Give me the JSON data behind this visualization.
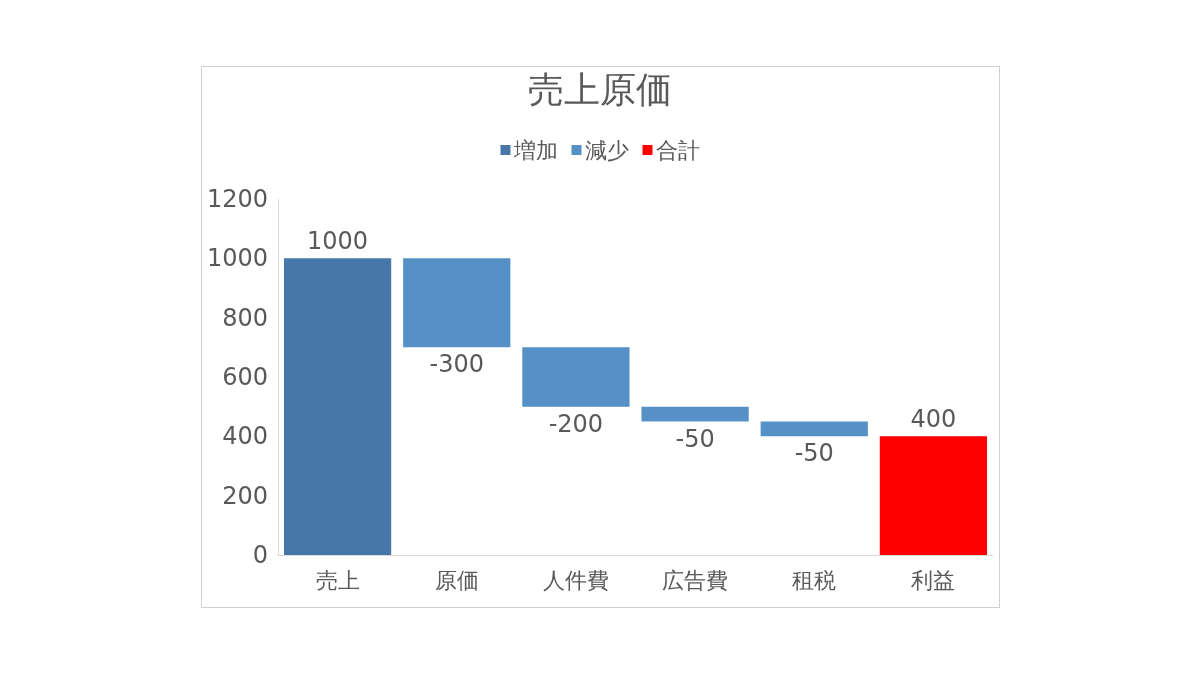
{
  "chart_data": {
    "type": "bar",
    "title": "売上原価",
    "categories": [
      "売上",
      "原価",
      "人件費",
      "広告費",
      "租税",
      "利益"
    ],
    "series": [
      {
        "name": "増加",
        "color": "#4677a8",
        "values": [
          1000,
          null,
          null,
          null,
          null,
          null
        ]
      },
      {
        "name": "減少",
        "color": "#5591c7",
        "values": [
          null,
          -300,
          -200,
          -50,
          -50,
          null
        ],
        "base": [
          null,
          1000,
          700,
          500,
          450,
          null
        ]
      },
      {
        "name": "合計",
        "color": "#ff0000",
        "values": [
          null,
          null,
          null,
          null,
          null,
          400
        ]
      }
    ],
    "ylim": [
      0,
      1200
    ],
    "yticks": [
      0,
      200,
      400,
      600,
      800,
      1000,
      1200
    ],
    "grid": false,
    "legend": "top",
    "data_labels": true
  }
}
